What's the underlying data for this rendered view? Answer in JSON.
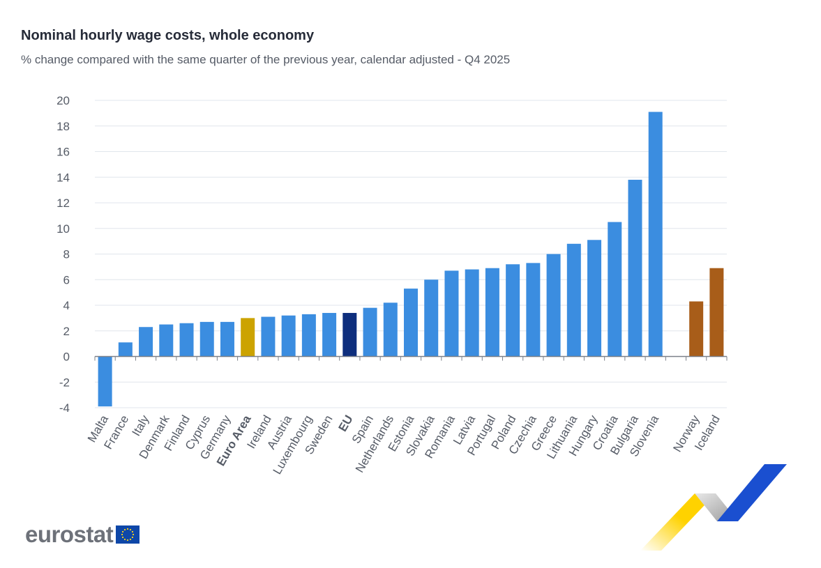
{
  "header": {
    "title": "Nominal hourly wage costs, whole economy",
    "subtitle": "% change compared with the same quarter of the previous year, calendar adjusted - Q4 2025"
  },
  "logo": {
    "text": "eurostat",
    "icon": "eu-flag-icon"
  },
  "colors": {
    "member": "#3b8de0",
    "euro_area": "#cca300",
    "eu": "#0e2e7d",
    "efta": "#a85d19",
    "grid": "#e0e6ec",
    "tick_text": "#555b66"
  },
  "chart_data": {
    "type": "bar",
    "title": "Nominal hourly wage costs, whole economy",
    "subtitle": "% change compared with the same quarter of the previous year, calendar adjusted - Q4 2025",
    "ylim": [
      -4,
      20
    ],
    "yticks": [
      20,
      18,
      16,
      14,
      12,
      10,
      8,
      6,
      4,
      2,
      0,
      -2,
      -4
    ],
    "grid": true,
    "categories": [
      "Malta",
      "France",
      "Italy",
      "Denmark",
      "Finland",
      "Cyprus",
      "Germany",
      "Euro Area",
      "Ireland",
      "Austria",
      "Luxembourg",
      "Sweden",
      "EU",
      "Spain",
      "Netherlands",
      "Estonia",
      "Slovakia",
      "Romania",
      "Latvia",
      "Portugal",
      "Poland",
      "Czechia",
      "Greece",
      "Lithuania",
      "Hungary",
      "Croatia",
      "Bulgaria",
      "Slovenia",
      "",
      "Norway",
      "Iceland"
    ],
    "values": [
      -3.9,
      1.1,
      2.3,
      2.5,
      2.6,
      2.7,
      2.7,
      3.0,
      3.1,
      3.2,
      3.3,
      3.4,
      3.4,
      3.8,
      4.2,
      5.3,
      6.0,
      6.7,
      6.8,
      6.9,
      7.2,
      7.3,
      8.0,
      8.8,
      9.1,
      10.5,
      13.8,
      19.1,
      null,
      4.3,
      6.9
    ],
    "groups": [
      "member",
      "member",
      "member",
      "member",
      "member",
      "member",
      "member",
      "euro_area",
      "member",
      "member",
      "member",
      "member",
      "eu",
      "member",
      "member",
      "member",
      "member",
      "member",
      "member",
      "member",
      "member",
      "member",
      "member",
      "member",
      "member",
      "member",
      "member",
      "member",
      "gap",
      "efta",
      "efta"
    ],
    "bold_labels": [
      "Euro Area",
      "EU"
    ]
  }
}
